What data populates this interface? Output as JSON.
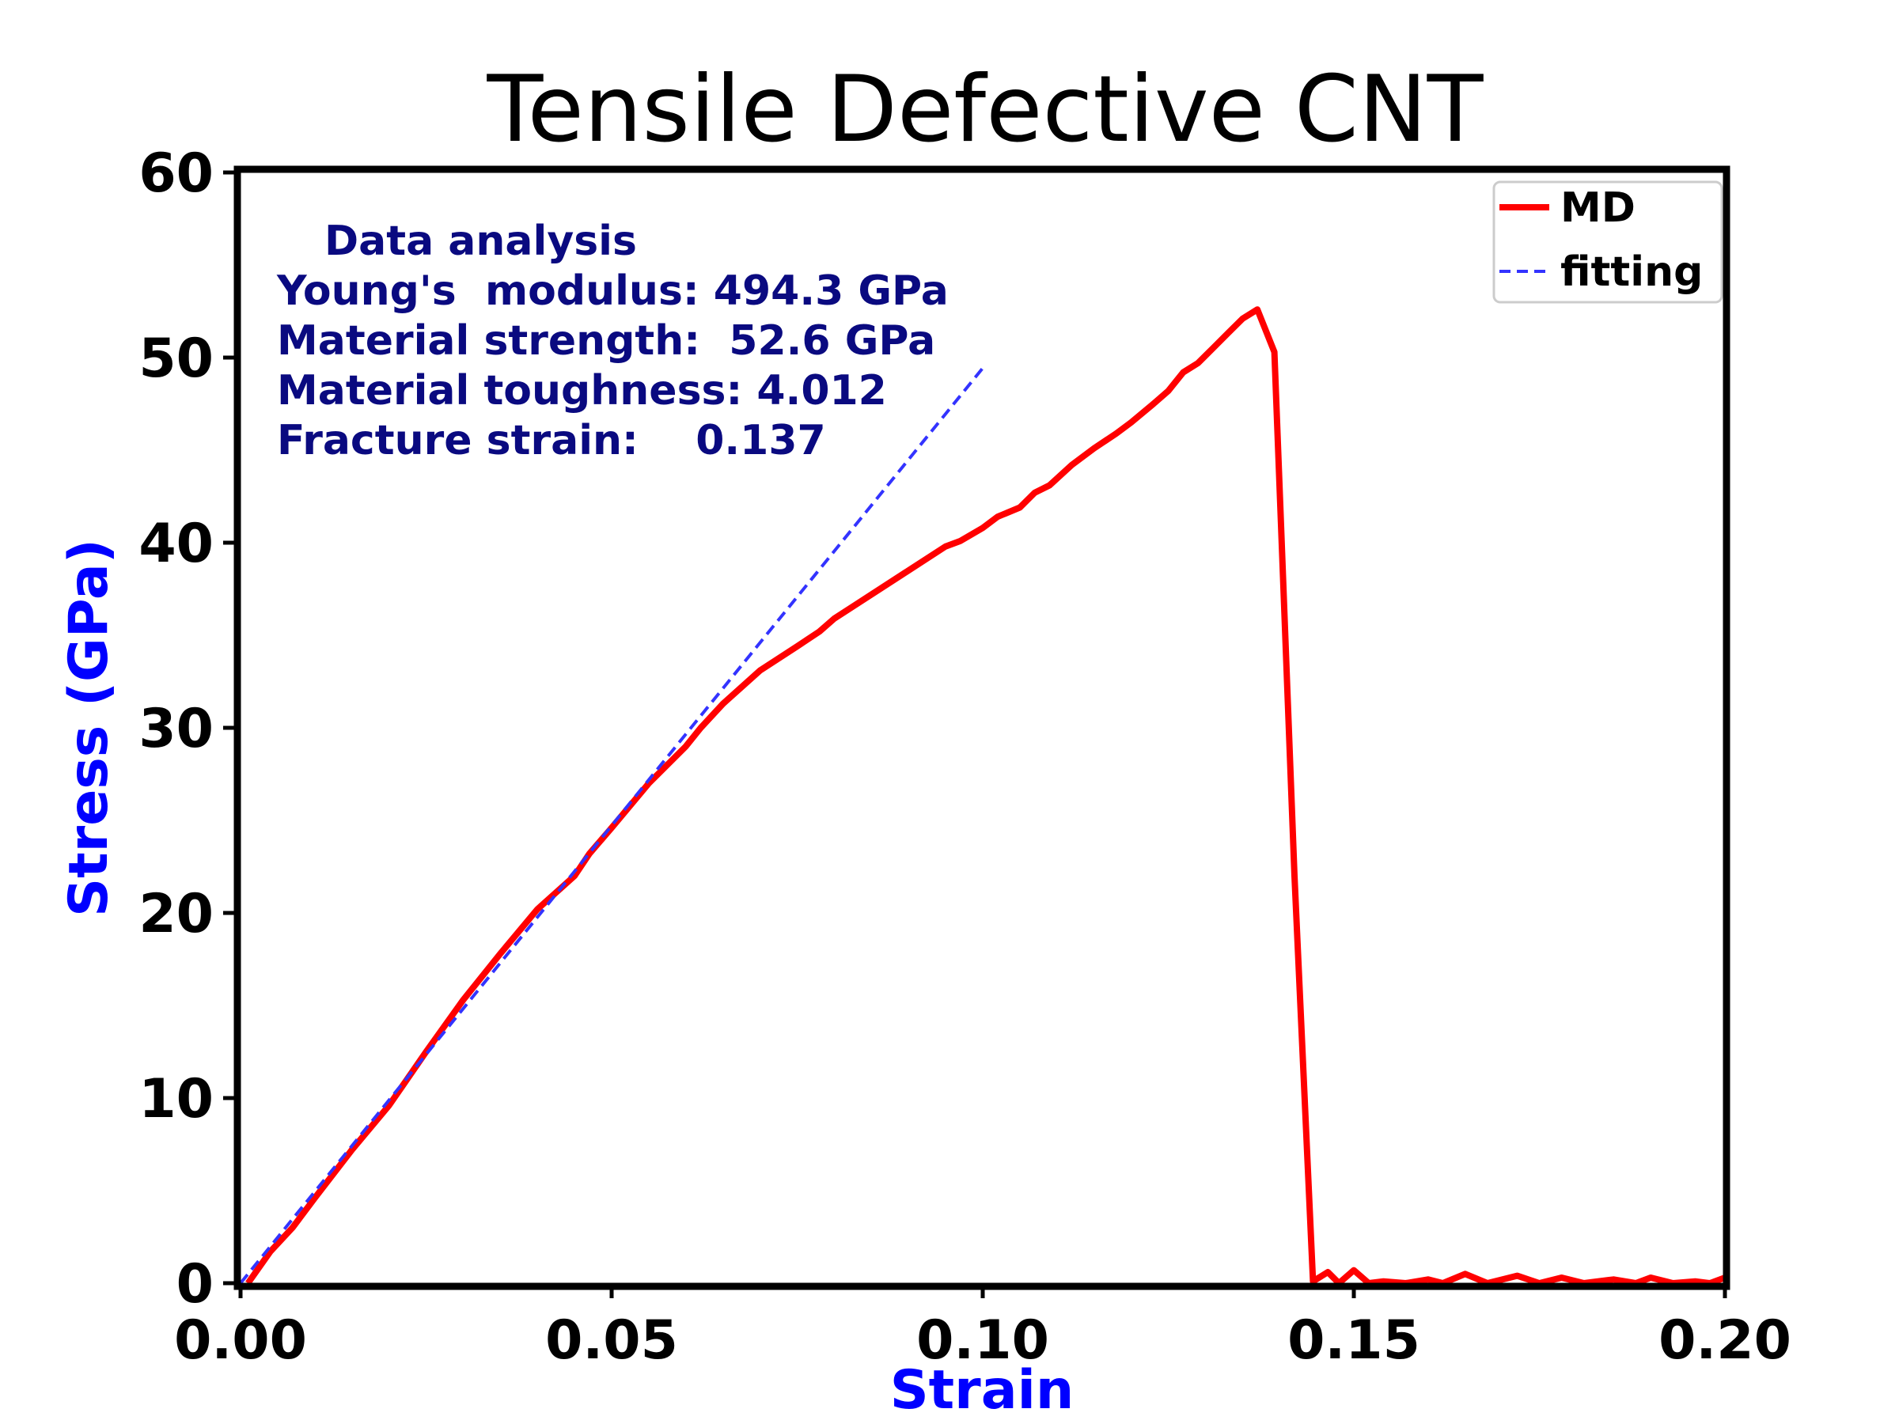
{
  "chart_data": {
    "type": "line",
    "title": "Tensile Defective CNT",
    "xlabel": "Strain",
    "ylabel": "Stress (GPa)",
    "xlim": [
      0,
      0.2
    ],
    "ylim": [
      0,
      60
    ],
    "x_ticks": [
      "0.00",
      "0.05",
      "0.10",
      "0.15",
      "0.20"
    ],
    "y_ticks": [
      "0",
      "10",
      "20",
      "30",
      "40",
      "50",
      "60"
    ],
    "grid": false,
    "legend_position": "top-right",
    "annotation": {
      "header": "Data analysis",
      "lines": [
        "Young's  modulus: 494.3 GPa",
        "Material strength:  52.6 GPa",
        "Material toughness: 4.012",
        "Fracture strain:    0.137"
      ],
      "color": "#0a0a80"
    },
    "colors": {
      "xlabel": "#0000ff",
      "ylabel": "#0000ff"
    },
    "series": [
      {
        "name": "MD",
        "style": "solid",
        "color": "#ff0000",
        "x": [
          0.001,
          0.004,
          0.007,
          0.01,
          0.015,
          0.02,
          0.025,
          0.03,
          0.035,
          0.04,
          0.045,
          0.047,
          0.05,
          0.055,
          0.06,
          0.062,
          0.065,
          0.07,
          0.075,
          0.078,
          0.08,
          0.085,
          0.09,
          0.095,
          0.097,
          0.1,
          0.102,
          0.105,
          0.107,
          0.109,
          0.112,
          0.115,
          0.118,
          0.12,
          0.123,
          0.125,
          0.127,
          0.129,
          0.131,
          0.133,
          0.135,
          0.137,
          0.1393,
          0.142,
          0.1445,
          0.1465,
          0.148,
          0.15,
          0.152,
          0.154,
          0.157,
          0.16,
          0.162,
          0.165,
          0.168,
          0.172,
          0.175,
          0.178,
          0.181,
          0.185,
          0.188,
          0.19,
          0.193,
          0.196,
          0.198,
          0.2
        ],
        "y": [
          0,
          1.7,
          3.0,
          4.6,
          7.2,
          9.6,
          12.5,
          15.3,
          17.8,
          20.2,
          22.0,
          23.2,
          24.6,
          27.0,
          29.0,
          30.0,
          31.3,
          33.1,
          34.4,
          35.2,
          35.9,
          37.2,
          38.5,
          39.8,
          40.1,
          40.8,
          41.4,
          41.9,
          42.7,
          43.1,
          44.2,
          45.1,
          45.9,
          46.5,
          47.5,
          48.2,
          49.2,
          49.7,
          50.5,
          51.3,
          52.1,
          52.6,
          50.3,
          22.0,
          0.1,
          0.6,
          0.0,
          0.7,
          0.0,
          0.1,
          0.0,
          0.2,
          0.0,
          0.5,
          0.0,
          0.4,
          0.0,
          0.3,
          0.0,
          0.2,
          0.0,
          0.3,
          0.0,
          0.1,
          0.0,
          0.3
        ]
      },
      {
        "name": "fitting",
        "style": "dashed",
        "color": "#3333ff",
        "x": [
          0,
          0.1
        ],
        "y": [
          0,
          49.43
        ]
      }
    ]
  }
}
